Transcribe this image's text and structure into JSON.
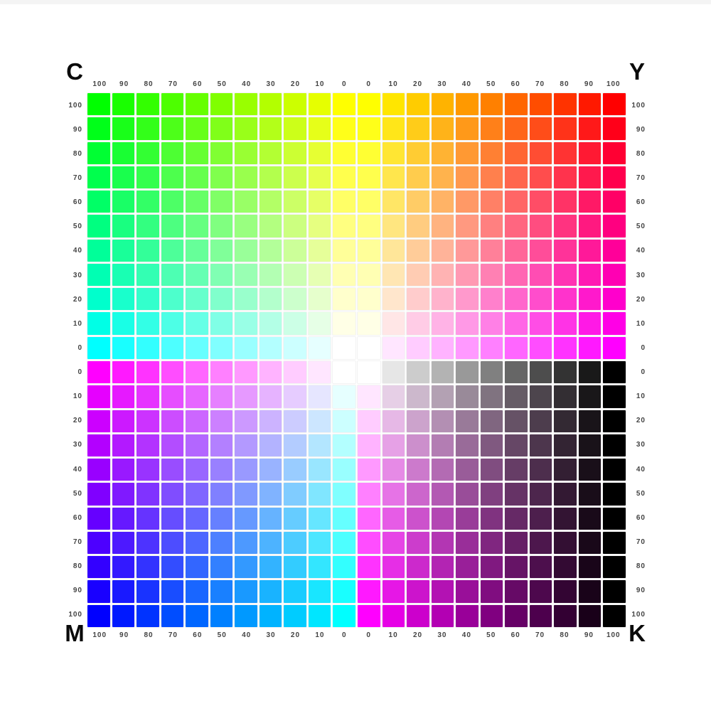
{
  "page": {
    "background": "#ffffff",
    "tick_label_color": "#434343",
    "corner_label_color": "#0a0a0a"
  },
  "chart_data": {
    "type": "heatmap",
    "description": "CMYK color mixing chart: 22x22 swatch grid split into four quadrants, each blending two ink channels in 10% steps",
    "grid": {
      "columns": 22,
      "rows": 22
    },
    "corner_labels": {
      "top_left": "C",
      "top_right": "Y",
      "bottom_left": "M",
      "bottom_right": "K"
    },
    "axes": {
      "sides": [
        "top",
        "bottom",
        "left",
        "right"
      ],
      "tick_labels": [
        "100",
        "90",
        "80",
        "70",
        "60",
        "50",
        "40",
        "30",
        "20",
        "10",
        "0",
        "0",
        "10",
        "20",
        "30",
        "40",
        "50",
        "60",
        "70",
        "80",
        "90",
        "100"
      ]
    },
    "column_percent": [
      100,
      90,
      80,
      70,
      60,
      50,
      40,
      30,
      20,
      10,
      0,
      0,
      10,
      20,
      30,
      40,
      50,
      60,
      70,
      80,
      90,
      100
    ],
    "row_percent": [
      100,
      90,
      80,
      70,
      60,
      50,
      40,
      30,
      20,
      10,
      0,
      0,
      10,
      20,
      30,
      40,
      50,
      60,
      70,
      80,
      90,
      100
    ],
    "quadrants": {
      "top_left": {
        "x_channel": "C",
        "y_channel": "Y"
      },
      "top_right": {
        "x_channel": "M",
        "y_channel": "Y"
      },
      "bottom_left": {
        "x_channel": "M",
        "y_channel": "C"
      },
      "bottom_right": {
        "x_channel": "K",
        "y_channel": "M"
      }
    },
    "color_conversion": "R=255*(1-C)*(1-K), G=255*(1-M)*(1-K), B=255*(1-Y)*(1-K), channels as fractions of 100%"
  }
}
